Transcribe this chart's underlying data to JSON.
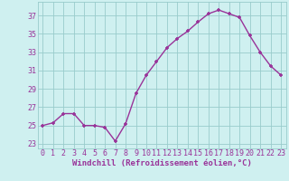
{
  "x": [
    0,
    1,
    2,
    3,
    4,
    5,
    6,
    7,
    8,
    9,
    10,
    11,
    12,
    13,
    14,
    15,
    16,
    17,
    18,
    19,
    20,
    21,
    22,
    23
  ],
  "y": [
    25.0,
    25.3,
    26.3,
    26.3,
    25.0,
    25.0,
    24.8,
    23.3,
    25.2,
    28.5,
    30.5,
    32.0,
    33.5,
    34.5,
    35.3,
    36.3,
    37.2,
    37.6,
    37.2,
    36.8,
    34.8,
    33.0,
    31.5,
    30.5
  ],
  "line_color": "#993399",
  "marker": "+",
  "markersize": 3.5,
  "markeredgewidth": 1.2,
  "linewidth": 1.0,
  "xlabel": "Windchill (Refroidissement éolien,°C)",
  "yticks": [
    23,
    25,
    27,
    29,
    31,
    33,
    35,
    37
  ],
  "xticks": [
    0,
    1,
    2,
    3,
    4,
    5,
    6,
    7,
    8,
    9,
    10,
    11,
    12,
    13,
    14,
    15,
    16,
    17,
    18,
    19,
    20,
    21,
    22,
    23
  ],
  "ylim": [
    22.5,
    38.5
  ],
  "xlim": [
    -0.5,
    23.5
  ],
  "bg_color": "#cff0f0",
  "grid_color": "#99cccc",
  "xlabel_fontsize": 6.5,
  "tick_fontsize": 6.0,
  "tick_color": "#993399",
  "xlabel_color": "#993399"
}
